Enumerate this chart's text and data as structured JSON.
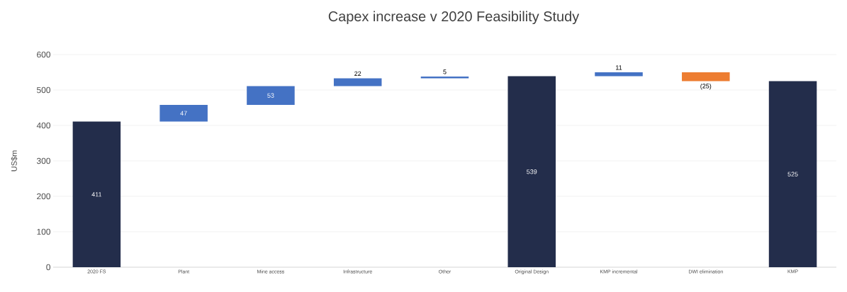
{
  "chart_data": {
    "type": "bar",
    "title": "Capex increase v 2020 Feasibility Study",
    "ylabel": "US$m",
    "categories": [
      "2020 FS",
      "Plant",
      "Mine access",
      "Infrastructure",
      "Other",
      "Original Design",
      "KMP incremental",
      "DWI elimination",
      "KMP"
    ],
    "values": [
      411,
      47,
      53,
      22,
      5,
      539,
      11,
      -25,
      525
    ],
    "base": [
      0,
      411,
      458,
      511,
      533,
      0,
      539,
      550,
      0
    ],
    "colors": [
      "#232d4b",
      "#4472c4",
      "#4472c4",
      "#4472c4",
      "#4472c4",
      "#232d4b",
      "#4472c4",
      "#ed7d31",
      "#232d4b"
    ],
    "value_labels": [
      "411",
      "47",
      "53",
      "22",
      "5",
      "539",
      "11",
      "(25)",
      "525"
    ],
    "ylim": [
      0,
      600
    ],
    "yticks": [
      0,
      100,
      200,
      300,
      400,
      500,
      600
    ],
    "grid": "y"
  }
}
